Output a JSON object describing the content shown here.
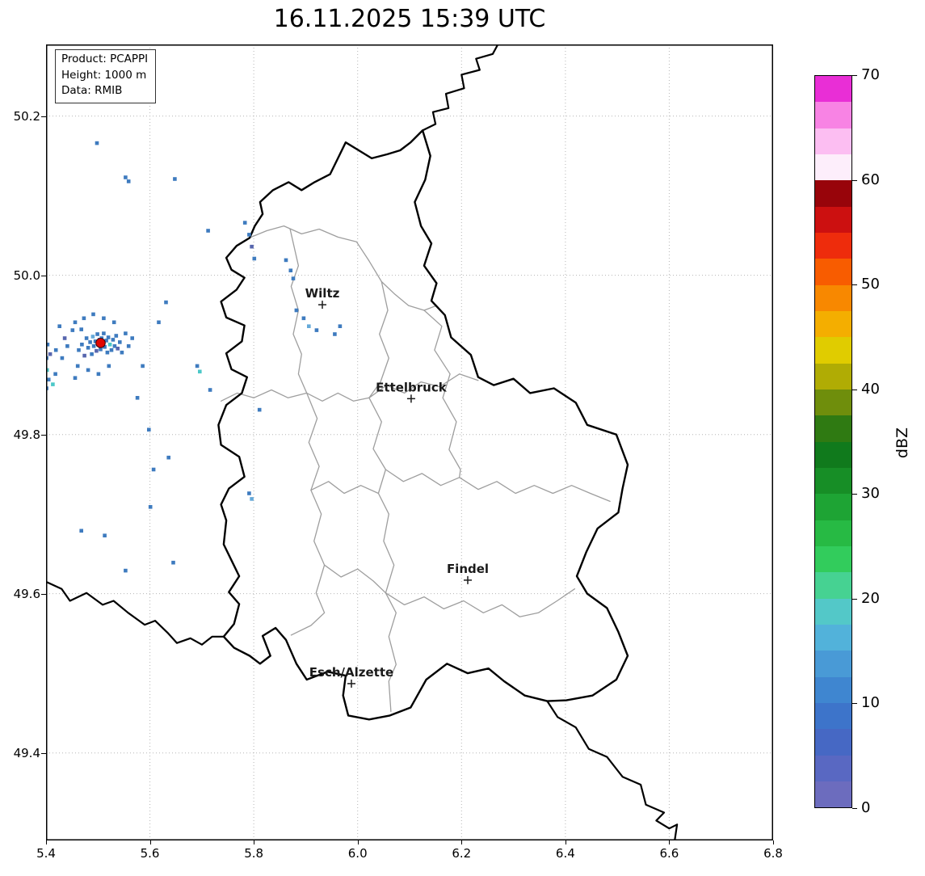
{
  "title": "16.11.2025 15:39 UTC",
  "info_box": {
    "lines": [
      "Product: PCAPPI",
      "Height: 1000 m",
      "Data: RMIB"
    ]
  },
  "axes": {
    "x_range": [
      5.4,
      6.8
    ],
    "y_range": [
      49.29,
      50.29
    ],
    "x_ticks": [
      5.4,
      5.6,
      5.8,
      6.0,
      6.2,
      6.4,
      6.6,
      6.8
    ],
    "y_ticks": [
      50.2,
      50.0,
      49.8,
      49.6,
      49.4
    ]
  },
  "colorbar": {
    "label": "dBZ",
    "min": 0,
    "max": 70,
    "ticks": [
      0,
      10,
      20,
      30,
      40,
      50,
      60,
      70
    ],
    "colors": [
      "#6c6cbe",
      "#5968c2",
      "#4668c4",
      "#3d74ca",
      "#3f86d0",
      "#499ad6",
      "#52b2da",
      "#53c8c8",
      "#46d292",
      "#32cc5c",
      "#27ba44",
      "#1ea434",
      "#178e26",
      "#107a1c",
      "#2f7a12",
      "#6f8e0c",
      "#b0ac04",
      "#e0cc00",
      "#f4ae00",
      "#f88800",
      "#f85c00",
      "#ee2c0c",
      "#cc1010",
      "#98040a",
      "#fdeefb",
      "#fcbef2",
      "#f883e4",
      "#e92ed6"
    ]
  },
  "map": {
    "colors": {
      "border": "#000000",
      "canton": "#9e9e9e",
      "grid": "#b5b5b5",
      "city": "#1a1a1a",
      "radar_site": "#e10600",
      "frame": "#000000"
    },
    "country_border": [
      [
        6.125,
        50.182
      ],
      [
        6.14,
        50.15
      ],
      [
        6.13,
        50.12
      ],
      [
        6.11,
        50.092
      ],
      [
        6.122,
        50.062
      ],
      [
        6.142,
        50.04
      ],
      [
        6.128,
        50.012
      ],
      [
        6.152,
        49.99
      ],
      [
        6.142,
        49.968
      ],
      [
        6.168,
        49.95
      ],
      [
        6.18,
        49.922
      ],
      [
        6.218,
        49.9
      ],
      [
        6.232,
        49.872
      ],
      [
        6.262,
        49.862
      ],
      [
        6.3,
        49.87
      ],
      [
        6.332,
        49.852
      ],
      [
        6.378,
        49.858
      ],
      [
        6.42,
        49.84
      ],
      [
        6.442,
        49.812
      ],
      [
        6.498,
        49.8
      ],
      [
        6.52,
        49.762
      ],
      [
        6.51,
        49.732
      ],
      [
        6.502,
        49.702
      ],
      [
        6.462,
        49.682
      ],
      [
        6.44,
        49.652
      ],
      [
        6.422,
        49.622
      ],
      [
        6.442,
        49.6
      ],
      [
        6.48,
        49.582
      ],
      [
        6.502,
        49.552
      ],
      [
        6.52,
        49.522
      ],
      [
        6.498,
        49.492
      ],
      [
        6.452,
        49.472
      ],
      [
        6.402,
        49.466
      ],
      [
        6.365,
        49.465
      ],
      [
        6.322,
        49.472
      ],
      [
        6.282,
        49.49
      ],
      [
        6.252,
        49.506
      ],
      [
        6.212,
        49.5
      ],
      [
        6.172,
        49.512
      ],
      [
        6.132,
        49.492
      ],
      [
        6.102,
        49.457
      ],
      [
        6.062,
        49.447
      ],
      [
        6.022,
        49.442
      ],
      [
        5.982,
        49.447
      ],
      [
        5.972,
        49.472
      ],
      [
        5.977,
        49.497
      ],
      [
        5.942,
        49.502
      ],
      [
        5.902,
        49.492
      ],
      [
        5.882,
        49.512
      ],
      [
        5.862,
        49.542
      ],
      [
        5.842,
        49.557
      ],
      [
        5.817,
        49.547
      ],
      [
        5.832,
        49.522
      ],
      [
        5.812,
        49.512
      ],
      [
        5.792,
        49.522
      ],
      [
        5.762,
        49.532
      ],
      [
        5.742,
        49.546
      ],
      [
        5.762,
        49.562
      ],
      [
        5.772,
        49.587
      ],
      [
        5.752,
        49.602
      ],
      [
        5.772,
        49.622
      ],
      [
        5.757,
        49.642
      ],
      [
        5.742,
        49.662
      ],
      [
        5.747,
        49.692
      ],
      [
        5.737,
        49.712
      ],
      [
        5.752,
        49.732
      ],
      [
        5.782,
        49.747
      ],
      [
        5.772,
        49.772
      ],
      [
        5.737,
        49.787
      ],
      [
        5.732,
        49.812
      ],
      [
        5.747,
        49.837
      ],
      [
        5.777,
        49.852
      ],
      [
        5.787,
        49.872
      ],
      [
        5.757,
        49.882
      ],
      [
        5.747,
        49.902
      ],
      [
        5.777,
        49.917
      ],
      [
        5.782,
        49.937
      ],
      [
        5.747,
        49.947
      ],
      [
        5.737,
        49.967
      ],
      [
        5.767,
        49.982
      ],
      [
        5.782,
        49.997
      ],
      [
        5.757,
        50.007
      ],
      [
        5.747,
        50.022
      ],
      [
        5.767,
        50.037
      ],
      [
        5.792,
        50.047
      ],
      [
        5.802,
        50.062
      ],
      [
        5.817,
        50.077
      ],
      [
        5.812,
        50.092
      ],
      [
        5.837,
        50.107
      ],
      [
        5.867,
        50.117
      ],
      [
        5.892,
        50.107
      ],
      [
        5.917,
        50.117
      ],
      [
        5.947,
        50.127
      ],
      [
        5.962,
        50.147
      ],
      [
        5.977,
        50.167
      ],
      [
        6.002,
        50.157
      ],
      [
        6.027,
        50.147
      ],
      [
        6.057,
        50.152
      ],
      [
        6.082,
        50.157
      ],
      [
        6.102,
        50.167
      ],
      [
        6.125,
        50.182
      ]
    ],
    "external_borders": [
      [
        [
          6.125,
          50.182
        ],
        [
          6.15,
          50.19
        ],
        [
          6.145,
          50.205
        ],
        [
          6.175,
          50.21
        ],
        [
          6.17,
          50.228
        ],
        [
          6.205,
          50.235
        ],
        [
          6.2,
          50.252
        ],
        [
          6.235,
          50.258
        ],
        [
          6.228,
          50.272
        ],
        [
          6.26,
          50.278
        ],
        [
          6.27,
          50.29
        ]
      ],
      [
        [
          6.365,
          49.465
        ],
        [
          6.385,
          49.445
        ],
        [
          6.42,
          49.432
        ],
        [
          6.445,
          49.405
        ],
        [
          6.48,
          49.395
        ],
        [
          6.51,
          49.37
        ],
        [
          6.545,
          49.36
        ],
        [
          6.555,
          49.335
        ],
        [
          6.59,
          49.325
        ],
        [
          6.575,
          49.315
        ],
        [
          6.6,
          49.305
        ],
        [
          6.615,
          49.31
        ],
        [
          6.61,
          49.288
        ]
      ],
      [
        [
          5.4,
          49.615
        ],
        [
          5.43,
          49.606
        ],
        [
          5.446,
          49.591
        ],
        [
          5.478,
          49.601
        ],
        [
          5.509,
          49.586
        ],
        [
          5.53,
          49.591
        ],
        [
          5.558,
          49.576
        ],
        [
          5.59,
          49.561
        ],
        [
          5.61,
          49.566
        ],
        [
          5.634,
          49.551
        ],
        [
          5.652,
          49.538
        ],
        [
          5.678,
          49.544
        ],
        [
          5.7,
          49.536
        ],
        [
          5.72,
          49.546
        ],
        [
          5.742,
          49.546
        ]
      ]
    ],
    "canton_borders": [
      [
        [
          5.795,
          50.048
        ],
        [
          5.825,
          50.056
        ],
        [
          5.858,
          50.062
        ],
        [
          5.892,
          50.052
        ],
        [
          5.926,
          50.058
        ],
        [
          5.962,
          50.048
        ],
        [
          5.998,
          50.042
        ],
        [
          6.022,
          50.018
        ],
        [
          6.046,
          49.992
        ],
        [
          6.072,
          49.976
        ],
        [
          6.098,
          49.962
        ],
        [
          6.128,
          49.956
        ],
        [
          6.152,
          49.962
        ]
      ],
      [
        [
          5.87,
          50.058
        ],
        [
          5.886,
          50.012
        ],
        [
          5.872,
          49.986
        ],
        [
          5.886,
          49.956
        ],
        [
          5.876,
          49.926
        ],
        [
          5.892,
          49.901
        ],
        [
          5.886,
          49.876
        ],
        [
          5.902,
          49.852
        ]
      ],
      [
        [
          5.737,
          49.842
        ],
        [
          5.768,
          49.852
        ],
        [
          5.8,
          49.846
        ],
        [
          5.834,
          49.856
        ],
        [
          5.866,
          49.846
        ],
        [
          5.902,
          49.852
        ],
        [
          5.932,
          49.842
        ],
        [
          5.962,
          49.852
        ],
        [
          5.992,
          49.842
        ],
        [
          6.022,
          49.846
        ]
      ],
      [
        [
          6.022,
          49.846
        ],
        [
          6.056,
          49.862
        ],
        [
          6.09,
          49.852
        ],
        [
          6.122,
          49.866
        ],
        [
          6.158,
          49.86
        ],
        [
          6.196,
          49.876
        ],
        [
          6.232,
          49.868
        ]
      ],
      [
        [
          6.046,
          49.992
        ],
        [
          6.058,
          49.956
        ],
        [
          6.042,
          49.926
        ],
        [
          6.06,
          49.896
        ],
        [
          6.044,
          49.866
        ],
        [
          6.022,
          49.846
        ]
      ],
      [
        [
          6.022,
          49.846
        ],
        [
          6.046,
          49.816
        ],
        [
          6.03,
          49.782
        ],
        [
          6.054,
          49.756
        ],
        [
          6.04,
          49.726
        ],
        [
          6.06,
          49.7
        ],
        [
          6.05,
          49.666
        ],
        [
          6.07,
          49.636
        ],
        [
          6.054,
          49.601
        ],
        [
          6.074,
          49.576
        ],
        [
          6.06,
          49.546
        ],
        [
          6.074,
          49.511
        ],
        [
          6.06,
          49.49
        ],
        [
          6.064,
          49.452
        ]
      ],
      [
        [
          5.902,
          49.852
        ],
        [
          5.922,
          49.82
        ],
        [
          5.906,
          49.79
        ],
        [
          5.926,
          49.76
        ],
        [
          5.91,
          49.73
        ],
        [
          5.93,
          49.7
        ],
        [
          5.916,
          49.666
        ],
        [
          5.936,
          49.636
        ],
        [
          5.92,
          49.601
        ],
        [
          5.936,
          49.576
        ],
        [
          5.91,
          49.56
        ],
        [
          5.872,
          49.548
        ]
      ],
      [
        [
          5.91,
          49.73
        ],
        [
          5.944,
          49.741
        ],
        [
          5.974,
          49.726
        ],
        [
          6.006,
          49.736
        ],
        [
          6.04,
          49.726
        ]
      ],
      [
        [
          6.054,
          49.756
        ],
        [
          6.088,
          49.741
        ],
        [
          6.124,
          49.751
        ],
        [
          6.16,
          49.736
        ],
        [
          6.196,
          49.746
        ],
        [
          6.232,
          49.731
        ],
        [
          6.268,
          49.741
        ],
        [
          6.304,
          49.726
        ],
        [
          6.34,
          49.736
        ],
        [
          6.376,
          49.726
        ],
        [
          6.412,
          49.736
        ],
        [
          6.448,
          49.726
        ],
        [
          6.486,
          49.716
        ]
      ],
      [
        [
          6.128,
          49.956
        ],
        [
          6.162,
          49.936
        ],
        [
          6.148,
          49.906
        ],
        [
          6.178,
          49.876
        ],
        [
          6.164,
          49.846
        ],
        [
          6.19,
          49.816
        ],
        [
          6.176,
          49.781
        ],
        [
          6.198,
          49.756
        ],
        [
          6.196,
          49.746
        ]
      ],
      [
        [
          5.936,
          49.636
        ],
        [
          5.968,
          49.621
        ],
        [
          6.0,
          49.631
        ],
        [
          6.03,
          49.616
        ],
        [
          6.054,
          49.601
        ]
      ],
      [
        [
          6.054,
          49.601
        ],
        [
          6.09,
          49.586
        ],
        [
          6.128,
          49.596
        ],
        [
          6.166,
          49.581
        ],
        [
          6.204,
          49.591
        ],
        [
          6.242,
          49.576
        ],
        [
          6.278,
          49.586
        ],
        [
          6.312,
          49.571
        ],
        [
          6.348,
          49.576
        ],
        [
          6.384,
          49.591
        ],
        [
          6.418,
          49.606
        ]
      ]
    ]
  },
  "cities": [
    {
      "name": "Wiltz",
      "lon": 5.932,
      "lat": 49.963
    },
    {
      "name": "Ettelbruck",
      "lon": 6.103,
      "lat": 49.845
    },
    {
      "name": "Findel",
      "lon": 6.212,
      "lat": 49.617
    },
    {
      "name": "Esch/Alzette",
      "lon": 5.988,
      "lat": 49.487
    }
  ],
  "radar_site": {
    "lon": 5.505,
    "lat": 49.915
  },
  "echo_palette": [
    "#5766ae",
    "#3e7bbf",
    "#65a9d9",
    "#4cc8c8"
  ],
  "echoes": [
    [
      5.463,
      49.906,
      1
    ],
    [
      5.469,
      49.913,
      1
    ],
    [
      5.474,
      49.899,
      0
    ],
    [
      5.478,
      49.921,
      1
    ],
    [
      5.481,
      49.909,
      1
    ],
    [
      5.485,
      49.916,
      1
    ],
    [
      5.488,
      49.901,
      1
    ],
    [
      5.49,
      49.923,
      2
    ],
    [
      5.492,
      49.911,
      1
    ],
    [
      5.495,
      49.917,
      1
    ],
    [
      5.497,
      49.905,
      0
    ],
    [
      5.499,
      49.926,
      1
    ],
    [
      5.5,
      49.913,
      1
    ],
    [
      5.503,
      49.919,
      1
    ],
    [
      5.505,
      49.907,
      1
    ],
    [
      5.507,
      49.921,
      1
    ],
    [
      5.509,
      49.914,
      0
    ],
    [
      5.511,
      49.927,
      1
    ],
    [
      5.513,
      49.91,
      1
    ],
    [
      5.516,
      49.918,
      1
    ],
    [
      5.518,
      49.903,
      1
    ],
    [
      5.52,
      49.922,
      1
    ],
    [
      5.523,
      49.913,
      3
    ],
    [
      5.526,
      49.906,
      1
    ],
    [
      5.529,
      49.919,
      1
    ],
    [
      5.532,
      49.911,
      1
    ],
    [
      5.535,
      49.924,
      1
    ],
    [
      5.538,
      49.908,
      0
    ],
    [
      5.542,
      49.916,
      1
    ],
    [
      5.546,
      49.903,
      1
    ],
    [
      5.451,
      49.931,
      1
    ],
    [
      5.456,
      49.941,
      1
    ],
    [
      5.461,
      49.886,
      1
    ],
    [
      5.468,
      49.932,
      1
    ],
    [
      5.441,
      49.911,
      1
    ],
    [
      5.436,
      49.921,
      0
    ],
    [
      5.431,
      49.896,
      1
    ],
    [
      5.426,
      49.936,
      1
    ],
    [
      5.419,
      49.906,
      1
    ],
    [
      5.553,
      49.927,
      1
    ],
    [
      5.559,
      49.911,
      1
    ],
    [
      5.566,
      49.921,
      1
    ],
    [
      5.473,
      49.946,
      1
    ],
    [
      5.491,
      49.951,
      1
    ],
    [
      5.511,
      49.946,
      1
    ],
    [
      5.531,
      49.941,
      1
    ],
    [
      5.481,
      49.881,
      1
    ],
    [
      5.501,
      49.876,
      1
    ],
    [
      5.521,
      49.886,
      1
    ],
    [
      5.456,
      49.871,
      1
    ],
    [
      5.401,
      49.896,
      1
    ],
    [
      5.402,
      49.881,
      3
    ],
    [
      5.405,
      49.869,
      1
    ],
    [
      5.401,
      49.858,
      1
    ],
    [
      5.408,
      49.901,
      0
    ],
    [
      5.403,
      49.913,
      1
    ],
    [
      5.413,
      49.863,
      3
    ],
    [
      5.418,
      49.876,
      1
    ],
    [
      5.498,
      50.166,
      1
    ],
    [
      5.553,
      50.123,
      1
    ],
    [
      5.559,
      50.118,
      1
    ],
    [
      5.648,
      50.121,
      1
    ],
    [
      5.712,
      50.056,
      1
    ],
    [
      5.783,
      50.066,
      1
    ],
    [
      5.791,
      50.051,
      1
    ],
    [
      5.796,
      50.036,
      0
    ],
    [
      5.801,
      50.021,
      1
    ],
    [
      5.862,
      50.019,
      1
    ],
    [
      5.871,
      50.006,
      1
    ],
    [
      5.876,
      49.996,
      1
    ],
    [
      5.882,
      49.956,
      1
    ],
    [
      5.896,
      49.946,
      1
    ],
    [
      5.906,
      49.936,
      2
    ],
    [
      5.921,
      49.931,
      1
    ],
    [
      5.956,
      49.926,
      1
    ],
    [
      5.966,
      49.936,
      1
    ],
    [
      5.691,
      49.886,
      1
    ],
    [
      5.696,
      49.879,
      3
    ],
    [
      5.716,
      49.856,
      1
    ],
    [
      5.811,
      49.831,
      1
    ],
    [
      5.607,
      49.756,
      1
    ],
    [
      5.791,
      49.726,
      1
    ],
    [
      5.796,
      49.719,
      2
    ],
    [
      5.601,
      49.709,
      1
    ],
    [
      5.468,
      49.679,
      1
    ],
    [
      5.513,
      49.673,
      1
    ],
    [
      5.645,
      49.639,
      1
    ],
    [
      5.553,
      49.629,
      1
    ],
    [
      5.617,
      49.941,
      1
    ],
    [
      5.631,
      49.966,
      1
    ],
    [
      5.586,
      49.886,
      1
    ],
    [
      5.576,
      49.846,
      1
    ],
    [
      5.636,
      49.771,
      1
    ],
    [
      5.598,
      49.806,
      1
    ]
  ]
}
